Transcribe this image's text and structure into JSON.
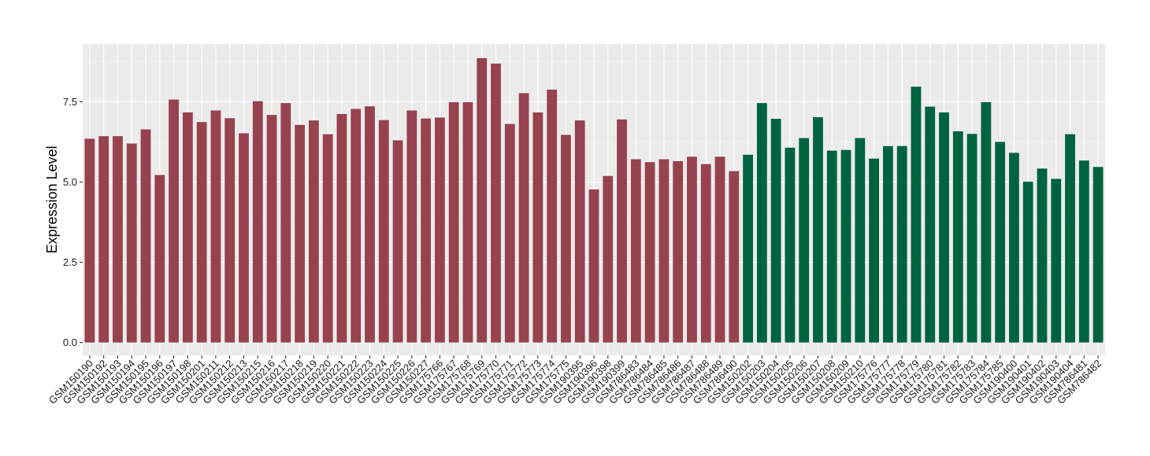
{
  "colors": {
    "panel_background": "#EBEBEB",
    "grid_major": "#FFFFFF",
    "grid_minor": "#F5F5F5",
    "tick_text": "#1A1A1A"
  },
  "chart_data": {
    "type": "bar",
    "title": "",
    "xlabel": "",
    "ylabel": "Expression Level",
    "ylim": [
      -0.4,
      9.3
    ],
    "y_ticks": [
      0.0,
      2.5,
      5.0,
      7.5
    ],
    "y_tick_labels": [
      "0.0",
      "2.5",
      "5.0",
      "7.5"
    ],
    "grid": true,
    "legend": "none",
    "x_tick_rotation": 45,
    "group_colors": [
      "#97434F",
      "#006340"
    ],
    "categories": [
      "GSM150190",
      "GSM150192",
      "GSM150193",
      "GSM150194",
      "GSM150195",
      "GSM150196",
      "GSM150197",
      "GSM150198",
      "GSM150201",
      "GSM150211",
      "GSM150212",
      "GSM150213",
      "GSM150215",
      "GSM150216",
      "GSM150217",
      "GSM150218",
      "GSM150219",
      "GSM150220",
      "GSM150221",
      "GSM150222",
      "GSM150223",
      "GSM150224",
      "GSM150225",
      "GSM150226",
      "GSM150227",
      "GSM175766",
      "GSM175767",
      "GSM175768",
      "GSM175769",
      "GSM175770",
      "GSM175771",
      "GSM175772",
      "GSM175773",
      "GSM175774",
      "GSM175775",
      "GSM190395",
      "GSM190396",
      "GSM190398",
      "GSM190399",
      "GSM786483",
      "GSM786484",
      "GSM786485",
      "GSM786486",
      "GSM786487",
      "GSM786488",
      "GSM786489",
      "GSM786490",
      "GSM150202",
      "GSM150203",
      "GSM150204",
      "GSM150205",
      "GSM150206",
      "GSM150207",
      "GSM150208",
      "GSM150209",
      "GSM150210",
      "GSM175776",
      "GSM175777",
      "GSM175778",
      "GSM175779",
      "GSM175780",
      "GSM175781",
      "GSM175782",
      "GSM175783",
      "GSM175784",
      "GSM175785",
      "GSM190400",
      "GSM190401",
      "GSM190402",
      "GSM190403",
      "GSM190404",
      "GSM786481",
      "GSM786482"
    ],
    "values": [
      6.35,
      6.43,
      6.43,
      6.2,
      6.64,
      5.22,
      7.57,
      7.17,
      6.87,
      7.23,
      6.99,
      6.52,
      7.52,
      7.09,
      7.46,
      6.78,
      6.92,
      6.49,
      7.12,
      7.28,
      7.36,
      6.93,
      6.3,
      7.23,
      6.98,
      7.01,
      7.49,
      7.49,
      8.86,
      8.69,
      6.81,
      7.77,
      7.17,
      7.88,
      6.47,
      6.92,
      4.77,
      5.19,
      6.95,
      5.71,
      5.62,
      5.71,
      5.65,
      5.79,
      5.56,
      5.79,
      5.34,
      5.85,
      7.46,
      6.97,
      6.07,
      6.37,
      7.02,
      5.98,
      6.0,
      6.37,
      5.73,
      6.12,
      6.12,
      7.97,
      7.35,
      7.17,
      6.58,
      6.5,
      7.49,
      6.25,
      5.91,
      5.01,
      5.42,
      5.1,
      6.49,
      5.67,
      5.47
    ],
    "groups": [
      0,
      0,
      0,
      0,
      0,
      0,
      0,
      0,
      0,
      0,
      0,
      0,
      0,
      0,
      0,
      0,
      0,
      0,
      0,
      0,
      0,
      0,
      0,
      0,
      0,
      0,
      0,
      0,
      0,
      0,
      0,
      0,
      0,
      0,
      0,
      0,
      0,
      0,
      0,
      0,
      0,
      0,
      0,
      0,
      0,
      0,
      0,
      1,
      1,
      1,
      1,
      1,
      1,
      1,
      1,
      1,
      1,
      1,
      1,
      1,
      1,
      1,
      1,
      1,
      1,
      1,
      1,
      1,
      1,
      1,
      1,
      1,
      1
    ]
  }
}
